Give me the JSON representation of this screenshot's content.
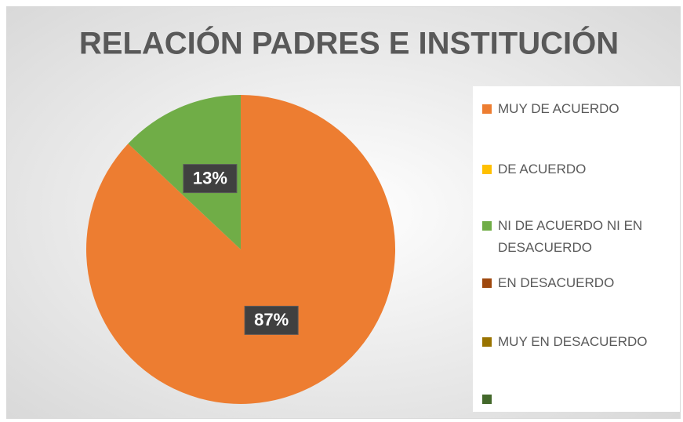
{
  "chart_data": {
    "type": "pie",
    "title": "RELACIÓN PADRES E INSTITUCIÓN",
    "categories": [
      "MUY DE ACUERDO",
      "DE ACUERDO",
      "NI DE ACUERDO NI EN DESACUERDO",
      "EN DESACUERDO",
      "MUY EN DESACUERDO",
      null
    ],
    "values": [
      87,
      0,
      13,
      0,
      0,
      0
    ],
    "value_labels": [
      "87%",
      null,
      "13%",
      null,
      null,
      null
    ],
    "colors": [
      "#ed7d31",
      "#ffc000",
      "#70ad47",
      "#9e480e",
      "#997300",
      "#43682b"
    ],
    "legend": "right"
  }
}
